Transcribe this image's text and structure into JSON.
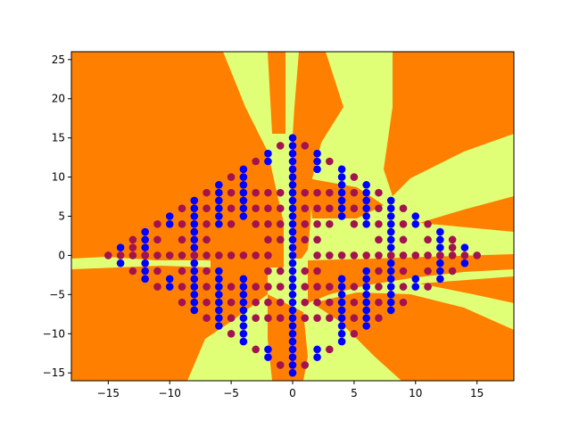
{
  "chart_data": {
    "type": "scatter",
    "title": "",
    "xlabel": "",
    "ylabel": "",
    "xlim": [
      -18,
      18
    ],
    "ylim": [
      -16,
      26
    ],
    "xticks": [
      -15,
      -10,
      -5,
      0,
      5,
      10,
      15
    ],
    "yticks": [
      -15,
      -10,
      -5,
      0,
      5,
      10,
      15,
      20,
      25
    ],
    "grid": false,
    "background": "decision-region contour (two classes)",
    "colors": {
      "region_a": "#ff8000",
      "region_b": "#e0ff77",
      "class_purple": "#a3134f",
      "class_blue": "#0000ff"
    },
    "series": [
      {
        "class": "blue",
        "points": [
          [
            0,
            -15
          ],
          [
            0,
            -14
          ],
          [
            0,
            -13
          ],
          [
            0,
            -12
          ],
          [
            0,
            -11
          ],
          [
            0,
            -10
          ],
          [
            0,
            -9
          ],
          [
            0,
            -8
          ],
          [
            0,
            -7
          ],
          [
            0,
            -6
          ],
          [
            0,
            -5
          ],
          [
            0,
            -4
          ],
          [
            0,
            -3
          ],
          [
            0,
            -2
          ],
          [
            0,
            -1
          ],
          [
            0,
            0
          ],
          [
            0,
            1
          ],
          [
            0,
            2
          ],
          [
            0,
            3
          ],
          [
            0,
            4
          ],
          [
            0,
            5
          ],
          [
            0,
            6
          ],
          [
            0,
            7
          ],
          [
            0,
            8
          ],
          [
            0,
            9
          ],
          [
            0,
            10
          ],
          [
            0,
            11
          ],
          [
            0,
            12
          ],
          [
            0,
            13
          ],
          [
            0,
            14
          ],
          [
            0,
            15
          ],
          [
            -8,
            -5
          ],
          [
            -8,
            -4
          ],
          [
            -8,
            -3
          ],
          [
            -8,
            -2
          ],
          [
            -8,
            -1
          ],
          [
            -8,
            0
          ],
          [
            -8,
            1
          ],
          [
            -8,
            2
          ],
          [
            -8,
            3
          ],
          [
            -8,
            4
          ],
          [
            -8,
            5
          ],
          [
            -8,
            6
          ],
          [
            -8,
            7
          ],
          [
            -8,
            -6
          ],
          [
            -8,
            -7
          ],
          [
            8,
            -5
          ],
          [
            8,
            -4
          ],
          [
            8,
            -3
          ],
          [
            8,
            -2
          ],
          [
            8,
            -1
          ],
          [
            8,
            0
          ],
          [
            8,
            1
          ],
          [
            8,
            2
          ],
          [
            8,
            3
          ],
          [
            8,
            4
          ],
          [
            8,
            5
          ],
          [
            8,
            6
          ],
          [
            8,
            7
          ],
          [
            8,
            -6
          ],
          [
            8,
            -7
          ],
          [
            -12,
            -3
          ],
          [
            -12,
            -2
          ],
          [
            -12,
            -1
          ],
          [
            -12,
            0
          ],
          [
            -12,
            1
          ],
          [
            -12,
            2
          ],
          [
            -12,
            3
          ],
          [
            12,
            -3
          ],
          [
            12,
            -2
          ],
          [
            12,
            -1
          ],
          [
            12,
            0
          ],
          [
            12,
            1
          ],
          [
            12,
            2
          ],
          [
            12,
            3
          ],
          [
            -14,
            1
          ],
          [
            -14,
            -1
          ],
          [
            14,
            1
          ],
          [
            14,
            -1
          ],
          [
            -10,
            5
          ],
          [
            -10,
            4
          ],
          [
            -10,
            -3
          ],
          [
            -10,
            -4
          ],
          [
            10,
            5
          ],
          [
            10,
            4
          ],
          [
            10,
            -3
          ],
          [
            10,
            -4
          ],
          [
            -6,
            9
          ],
          [
            -6,
            8
          ],
          [
            -6,
            7
          ],
          [
            -6,
            6
          ],
          [
            -6,
            5
          ],
          [
            -6,
            4
          ],
          [
            -6,
            -2
          ],
          [
            -6,
            -3
          ],
          [
            -6,
            -4
          ],
          [
            -6,
            -5
          ],
          [
            -6,
            -6
          ],
          [
            -6,
            -7
          ],
          [
            -6,
            -8
          ],
          [
            -6,
            -9
          ],
          [
            6,
            9
          ],
          [
            6,
            8
          ],
          [
            6,
            7
          ],
          [
            6,
            6
          ],
          [
            6,
            5
          ],
          [
            6,
            4
          ],
          [
            6,
            -2
          ],
          [
            6,
            -3
          ],
          [
            6,
            -4
          ],
          [
            6,
            -5
          ],
          [
            6,
            -6
          ],
          [
            6,
            -7
          ],
          [
            6,
            -8
          ],
          [
            6,
            -9
          ],
          [
            -4,
            11
          ],
          [
            -4,
            10
          ],
          [
            -4,
            9
          ],
          [
            -4,
            8
          ],
          [
            -4,
            7
          ],
          [
            -4,
            6
          ],
          [
            -4,
            5
          ],
          [
            -4,
            -3
          ],
          [
            -4,
            -4
          ],
          [
            -4,
            -5
          ],
          [
            -4,
            -6
          ],
          [
            -4,
            -7
          ],
          [
            -4,
            -8
          ],
          [
            -4,
            -9
          ],
          [
            -4,
            -10
          ],
          [
            -4,
            -11
          ],
          [
            4,
            11
          ],
          [
            4,
            10
          ],
          [
            4,
            9
          ],
          [
            4,
            8
          ],
          [
            4,
            7
          ],
          [
            4,
            6
          ],
          [
            4,
            5
          ],
          [
            4,
            -3
          ],
          [
            4,
            -4
          ],
          [
            4,
            -5
          ],
          [
            4,
            -6
          ],
          [
            4,
            -7
          ],
          [
            4,
            -8
          ],
          [
            4,
            -9
          ],
          [
            4,
            -10
          ],
          [
            4,
            -11
          ],
          [
            -2,
            13
          ],
          [
            -2,
            12
          ],
          [
            -2,
            -12
          ],
          [
            -2,
            -13
          ],
          [
            2,
            13
          ],
          [
            2,
            12
          ],
          [
            2,
            11
          ],
          [
            2,
            -12
          ],
          [
            2,
            -13
          ]
        ]
      },
      {
        "class": "purple",
        "points": [
          [
            -15,
            0
          ],
          [
            -14,
            0
          ],
          [
            -13,
            0
          ],
          [
            -13,
            2
          ],
          [
            -13,
            -2
          ],
          [
            -11,
            0
          ],
          [
            -11,
            4
          ],
          [
            -11,
            -4
          ],
          [
            -10,
            0
          ],
          [
            -9,
            0
          ],
          [
            -9,
            6
          ],
          [
            -9,
            -6
          ],
          [
            15,
            0
          ],
          [
            14,
            0
          ],
          [
            13,
            0
          ],
          [
            13,
            2
          ],
          [
            13,
            -2
          ],
          [
            11,
            0
          ],
          [
            11,
            4
          ],
          [
            11,
            -4
          ],
          [
            10,
            0
          ],
          [
            9,
            0
          ],
          [
            9,
            6
          ],
          [
            9,
            -6
          ],
          [
            -7,
            0
          ],
          [
            -7,
            8
          ],
          [
            -7,
            -8
          ],
          [
            -7,
            6
          ],
          [
            -7,
            -6
          ],
          [
            -7,
            4
          ],
          [
            -7,
            -4
          ],
          [
            -7,
            2
          ],
          [
            -7,
            -2
          ],
          [
            7,
            0
          ],
          [
            7,
            8
          ],
          [
            7,
            -8
          ],
          [
            7,
            6
          ],
          [
            7,
            -6
          ],
          [
            7,
            4
          ],
          [
            7,
            -4
          ],
          [
            7,
            2
          ],
          [
            7,
            -2
          ],
          [
            -5,
            0
          ],
          [
            -5,
            10
          ],
          [
            -5,
            -10
          ],
          [
            -5,
            8
          ],
          [
            -5,
            -8
          ],
          [
            -5,
            6
          ],
          [
            -5,
            -6
          ],
          [
            -5,
            4
          ],
          [
            -5,
            -4
          ],
          [
            5,
            0
          ],
          [
            5,
            10
          ],
          [
            5,
            -10
          ],
          [
            5,
            8
          ],
          [
            5,
            -8
          ],
          [
            5,
            6
          ],
          [
            5,
            -6
          ],
          [
            5,
            4
          ],
          [
            5,
            -4
          ],
          [
            -3,
            0
          ],
          [
            -3,
            12
          ],
          [
            -3,
            -12
          ],
          [
            -3,
            8
          ],
          [
            -3,
            -8
          ],
          [
            -3,
            6
          ],
          [
            -3,
            -6
          ],
          [
            -3,
            4
          ],
          [
            -3,
            -4
          ],
          [
            3,
            0
          ],
          [
            3,
            12
          ],
          [
            3,
            -12
          ],
          [
            3,
            8
          ],
          [
            3,
            -8
          ],
          [
            3,
            6
          ],
          [
            3,
            -6
          ],
          [
            3,
            4
          ],
          [
            3,
            -4
          ],
          [
            -2,
            0
          ],
          [
            -2,
            8
          ],
          [
            -2,
            -8
          ],
          [
            -2,
            6
          ],
          [
            -2,
            -6
          ],
          [
            -2,
            4
          ],
          [
            -2,
            -4
          ],
          [
            -2,
            2
          ],
          [
            -2,
            -2
          ],
          [
            2,
            0
          ],
          [
            2,
            8
          ],
          [
            2,
            -8
          ],
          [
            2,
            6
          ],
          [
            2,
            -6
          ],
          [
            2,
            4
          ],
          [
            2,
            -4
          ],
          [
            2,
            2
          ],
          [
            2,
            -2
          ],
          [
            -1,
            14
          ],
          [
            -1,
            -14
          ],
          [
            -1,
            8
          ],
          [
            -1,
            -8
          ],
          [
            -1,
            6
          ],
          [
            -1,
            -6
          ],
          [
            -1,
            4
          ],
          [
            -1,
            -4
          ],
          [
            -1,
            2
          ],
          [
            -1,
            -2
          ],
          [
            1,
            14
          ],
          [
            1,
            -14
          ],
          [
            1,
            8
          ],
          [
            1,
            -8
          ],
          [
            1,
            6
          ],
          [
            1,
            -6
          ],
          [
            1,
            4
          ],
          [
            1,
            -4
          ],
          [
            1,
            2
          ],
          [
            1,
            -2
          ],
          [
            -9,
            4
          ],
          [
            -9,
            -4
          ],
          [
            -9,
            2
          ],
          [
            -9,
            -2
          ],
          [
            9,
            4
          ],
          [
            9,
            -4
          ],
          [
            9,
            2
          ],
          [
            9,
            -2
          ],
          [
            -11,
            2
          ],
          [
            -11,
            -2
          ],
          [
            11,
            2
          ],
          [
            11,
            -2
          ],
          [
            -13,
            1
          ],
          [
            13,
            1
          ],
          [
            -6,
            0
          ],
          [
            6,
            0
          ],
          [
            -4,
            0
          ],
          [
            4,
            0
          ],
          [
            -12,
            0
          ],
          [
            12,
            0
          ],
          [
            -8,
            0
          ],
          [
            8,
            0
          ]
        ]
      }
    ]
  }
}
